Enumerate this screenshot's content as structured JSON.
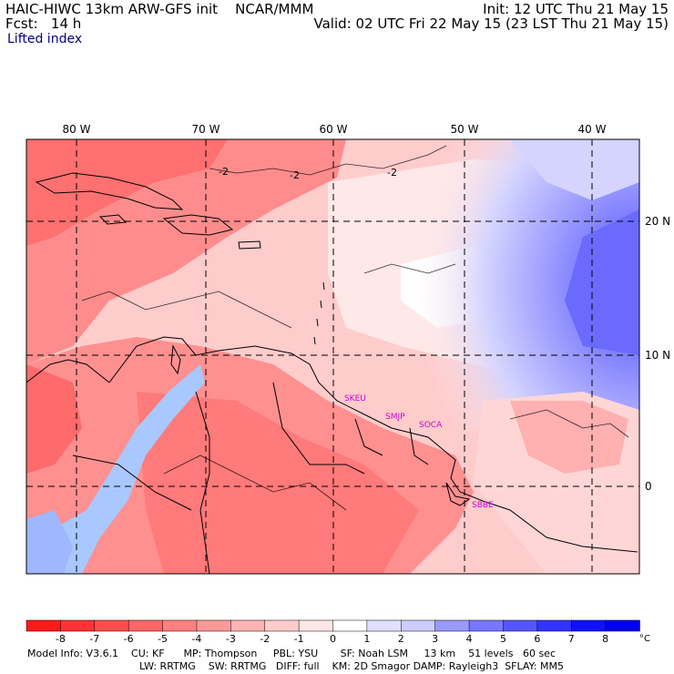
{
  "header": {
    "title": "HAIC-HIWC 13km ARW-GFS init",
    "center": "NCAR/MMM",
    "fcst": "Fcst:   14 h",
    "init": "Init: 12 UTC Thu 21 May 15",
    "valid": "Valid: 02 UTC Fri 22 May 15 (23 LST Thu 21 May 15)",
    "field": "Lifted index"
  },
  "map": {
    "lon_labels": [
      "80 W",
      "70 W",
      "60 W",
      "50 W",
      "40 W"
    ],
    "lat_labels": [
      "20 N",
      "10 N",
      "0"
    ],
    "contour_labels": [
      "-2",
      "-2",
      "-2"
    ],
    "stations": [
      "SKEU",
      "SMJP",
      "SOCA",
      "SBBE"
    ],
    "station_color": "#cc00cc"
  },
  "colorbar": {
    "labels": [
      "-8",
      "-7",
      "-6",
      "-5",
      "-4",
      "-3",
      "-2",
      "-1",
      "0",
      "1",
      "2",
      "3",
      "4",
      "5",
      "6",
      "7",
      "8"
    ],
    "unit": "°C",
    "colors": [
      "#ff1a1a",
      "#ff3333",
      "#ff4d4d",
      "#ff6666",
      "#ff8080",
      "#ff9999",
      "#ffb3b3",
      "#ffcccc",
      "#ffe6e6",
      "#ffffff",
      "#e0e0ff",
      "#ccccff",
      "#9999ff",
      "#7777ff",
      "#5555ff",
      "#3333ff",
      "#1111ff",
      "#0000ee"
    ]
  },
  "model_info": {
    "line1": "Model Info: V3.6.1    CU: KF      MP: Thompson     PBL: YSU       SF: Noah LSM     13 km    51 levels   60 sec",
    "line2": "LW: RRTMG    SW: RRTMG   DIFF: full    KM: 2D Smagor DAMP: Rayleigh3  SFLAY: MM5"
  }
}
